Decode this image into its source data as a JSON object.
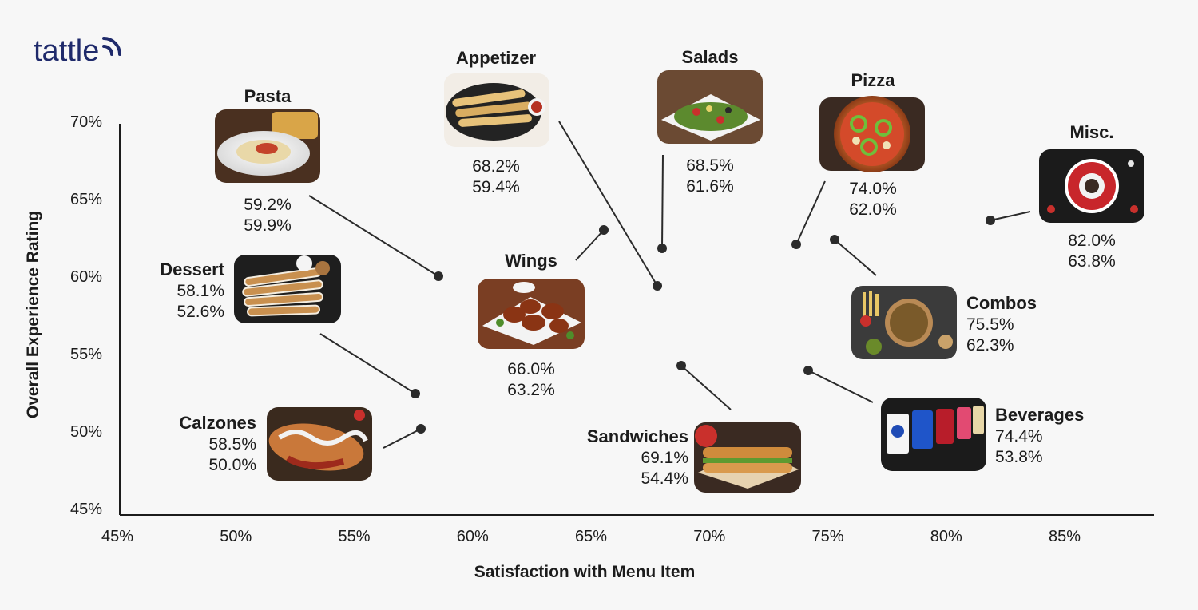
{
  "brand": {
    "logo_text": "tattle",
    "logo_color": "#1f2a6b"
  },
  "chart_data": {
    "type": "scatter",
    "xlabel": "Satisfaction with Menu Item",
    "ylabel": "Overall Experience Rating",
    "xlim": [
      45,
      88
    ],
    "ylim": [
      45,
      72
    ],
    "x_ticks": [
      "45%",
      "50%",
      "55%",
      "60%",
      "65%",
      "70%",
      "75%",
      "80%",
      "85%"
    ],
    "y_ticks": [
      "45%",
      "50%",
      "55%",
      "60%",
      "65%",
      "70%"
    ],
    "x_tick_values": [
      45,
      50,
      55,
      60,
      65,
      70,
      75,
      80,
      85
    ],
    "y_tick_values": [
      45,
      50,
      55,
      60,
      65,
      70
    ],
    "grid": false,
    "point_color": "#2b2b2b",
    "points": [
      {
        "name": "Pasta",
        "x": 59.2,
        "y": 59.9,
        "x_label": "59.2%",
        "y_label": "59.9%",
        "icon": "pasta-image"
      },
      {
        "name": "Appetizer",
        "x": 68.2,
        "y": 59.4,
        "x_label": "68.2%",
        "y_label": "59.4%",
        "icon": "appetizer-image"
      },
      {
        "name": "Salads",
        "x": 68.5,
        "y": 61.6,
        "x_label": "68.5%",
        "y_label": "61.6%",
        "icon": "salad-image"
      },
      {
        "name": "Pizza",
        "x": 74.0,
        "y": 62.0,
        "x_label": "74.0%",
        "y_label": "62.0%",
        "icon": "pizza-image"
      },
      {
        "name": "Misc.",
        "x": 82.0,
        "y": 63.8,
        "x_label": "82.0%",
        "y_label": "63.8%",
        "icon": "pizza-factory-logo-image"
      },
      {
        "name": "Dessert",
        "x": 58.1,
        "y": 52.6,
        "x_label": "58.1%",
        "y_label": "52.6%",
        "icon": "dessert-image"
      },
      {
        "name": "Wings",
        "x": 66.0,
        "y": 63.2,
        "x_label": "66.0%",
        "y_label": "63.2%",
        "icon": "wings-image"
      },
      {
        "name": "Combos",
        "x": 75.5,
        "y": 62.3,
        "x_label": "75.5%",
        "y_label": "62.3%",
        "icon": "combos-image"
      },
      {
        "name": "Calzones",
        "x": 58.5,
        "y": 50.0,
        "x_label": "58.5%",
        "y_label": "50.0%",
        "icon": "calzone-image"
      },
      {
        "name": "Sandwiches",
        "x": 69.1,
        "y": 54.4,
        "x_label": "69.1%",
        "y_label": "54.4%",
        "icon": "sandwich-image"
      },
      {
        "name": "Beverages",
        "x": 74.4,
        "y": 53.8,
        "x_label": "74.4%",
        "y_label": "53.8%",
        "icon": "beverages-image"
      }
    ]
  }
}
